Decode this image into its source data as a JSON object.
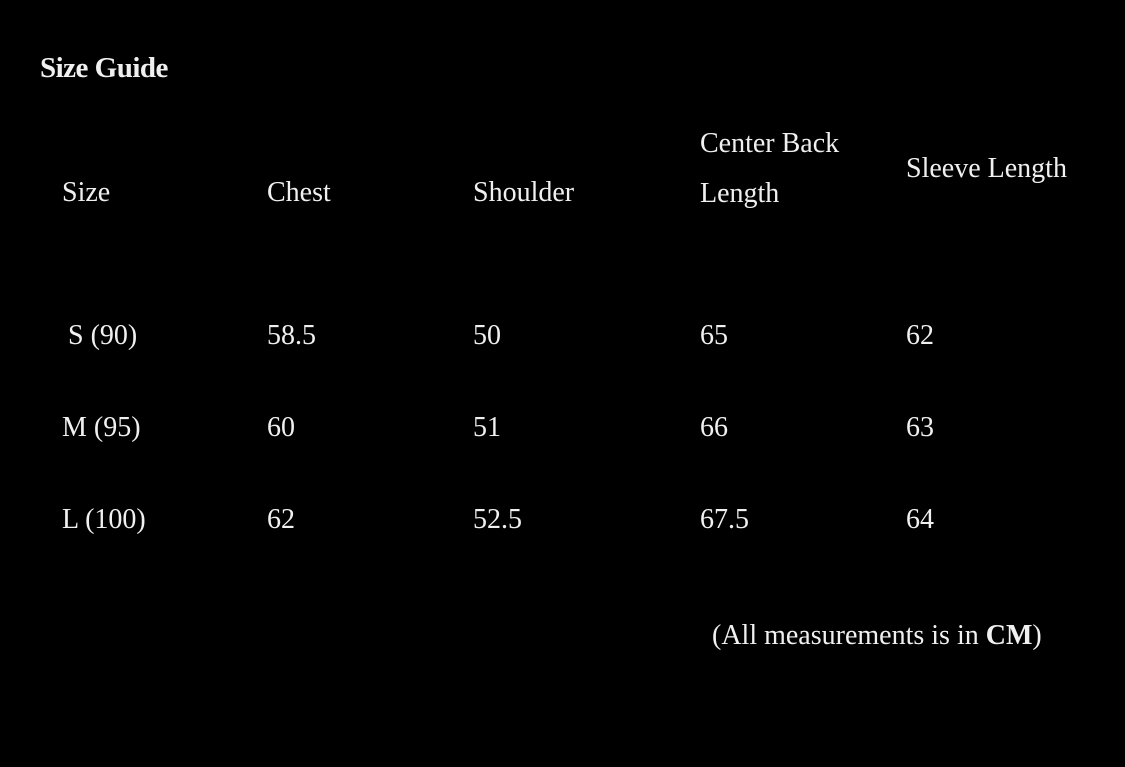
{
  "title": "Size Guide",
  "table": {
    "headers": [
      "Size",
      "Chest",
      "Shoulder",
      "Center Back Length",
      "Sleeve Length"
    ],
    "rows": [
      [
        "S (90)",
        "58.5",
        "50",
        "65",
        "62"
      ],
      [
        "M (95)",
        "60",
        "51",
        "66",
        "63"
      ],
      [
        "L (100)",
        "62",
        "52.5",
        "67.5",
        "64"
      ]
    ]
  },
  "note": {
    "prefix": "(All measurements is in ",
    "unit": "CM",
    "suffix": ")"
  }
}
